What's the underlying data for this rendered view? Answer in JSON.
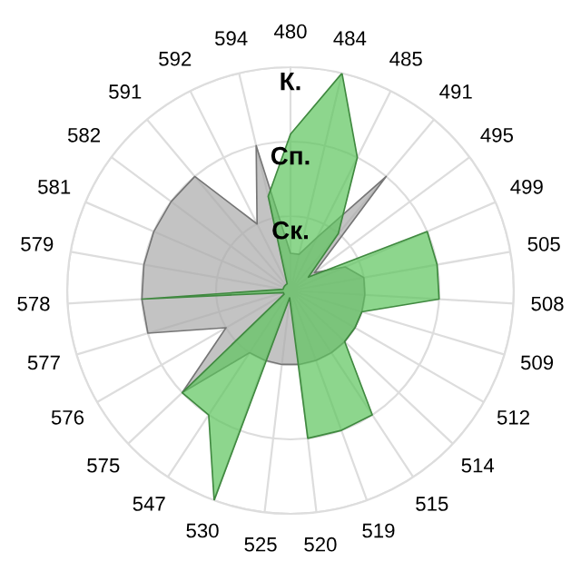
{
  "chart_data": {
    "type": "radar",
    "categories": [
      "480",
      "484",
      "485",
      "491",
      "495",
      "499",
      "505",
      "508",
      "509",
      "512",
      "514",
      "515",
      "519",
      "520",
      "525",
      "530",
      "547",
      "575",
      "576",
      "577",
      "578",
      "579",
      "581",
      "582",
      "591",
      "592",
      "594"
    ],
    "series": [
      {
        "color": "#a9a9a9",
        "values": [
          0.5,
          0.5,
          0.8,
          2,
          0.4,
          0.8,
          1,
          1,
          1,
          1,
          1,
          1,
          1,
          1,
          1,
          1,
          1,
          2,
          1,
          2,
          2,
          2,
          2,
          2,
          2,
          1,
          2
        ]
      },
      {
        "color": "#5cc45c",
        "values": [
          2.1,
          3,
          2,
          1,
          0.3,
          2,
          2,
          2,
          1,
          1,
          1,
          2,
          2,
          2,
          0.1,
          3,
          2,
          2,
          0.1,
          0.1,
          2,
          0.1,
          0.1,
          0.1,
          0.1,
          0.1,
          1.3
        ]
      }
    ],
    "ylim": [
      0,
      3
    ],
    "yticks": [
      {
        "value": 1,
        "label": "Ск."
      },
      {
        "value": 2,
        "label": "Сп."
      },
      {
        "value": 3,
        "label": "К."
      }
    ],
    "grid": true
  }
}
